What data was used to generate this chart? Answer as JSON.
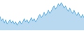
{
  "values": [
    78,
    74,
    76,
    72,
    75,
    71,
    73,
    75,
    72,
    74,
    71,
    73,
    70,
    72,
    74,
    71,
    73,
    76,
    73,
    75,
    72,
    74,
    77,
    74,
    76,
    73,
    75,
    78,
    80,
    77,
    79,
    82,
    79,
    81,
    84,
    81,
    83,
    86,
    88,
    85,
    87,
    90,
    88,
    91,
    89,
    86,
    88,
    85,
    83,
    86,
    83,
    81,
    84,
    81,
    79,
    82,
    79,
    77,
    80,
    77
  ],
  "line_color": "#5baee0",
  "fill_color": "#b8d9f0",
  "background_color": "#ffffff",
  "linewidth": 0.6
}
